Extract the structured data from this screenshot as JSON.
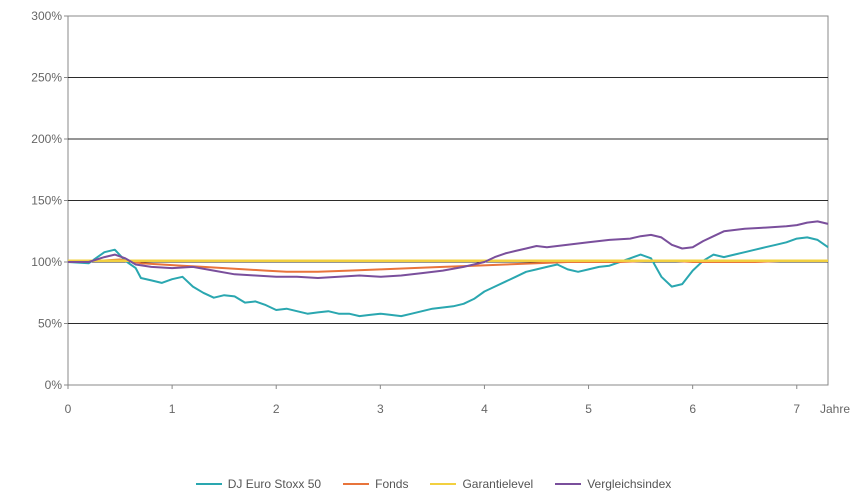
{
  "chart_data": {
    "type": "line",
    "xlabel": "Jahre",
    "ylabel": "",
    "xlim": [
      0,
      7.3
    ],
    "ylim": [
      0,
      300
    ],
    "x_ticks": [
      "0",
      "1",
      "2",
      "3",
      "4",
      "5",
      "6",
      "7"
    ],
    "y_ticks": [
      "0%",
      "50%",
      "100%",
      "150%",
      "200%",
      "250%",
      "300%"
    ],
    "y_tick_values": [
      0,
      50,
      100,
      150,
      200,
      250,
      300
    ],
    "grid": true,
    "legend": "bottom",
    "series": [
      {
        "name": "DJ Euro Stoxx 50",
        "color": "#2aa7b0",
        "x": [
          0,
          0.2,
          0.35,
          0.45,
          0.55,
          0.65,
          0.7,
          0.8,
          0.9,
          1.0,
          1.1,
          1.2,
          1.3,
          1.4,
          1.5,
          1.6,
          1.7,
          1.8,
          1.9,
          2.0,
          2.1,
          2.2,
          2.3,
          2.4,
          2.5,
          2.6,
          2.7,
          2.8,
          2.9,
          3.0,
          3.1,
          3.2,
          3.3,
          3.4,
          3.5,
          3.6,
          3.7,
          3.8,
          3.9,
          4.0,
          4.1,
          4.2,
          4.3,
          4.4,
          4.5,
          4.6,
          4.7,
          4.8,
          4.9,
          5.0,
          5.1,
          5.2,
          5.3,
          5.4,
          5.5,
          5.6,
          5.7,
          5.8,
          5.9,
          6.0,
          6.1,
          6.2,
          6.3,
          6.4,
          6.5,
          6.6,
          6.7,
          6.8,
          6.9,
          7.0,
          7.1,
          7.2,
          7.3
        ],
        "values": [
          100,
          99,
          108,
          110,
          101,
          95,
          87,
          85,
          83,
          86,
          88,
          80,
          75,
          71,
          73,
          72,
          67,
          68,
          65,
          61,
          62,
          60,
          58,
          59,
          60,
          58,
          58,
          56,
          57,
          58,
          57,
          56,
          58,
          60,
          62,
          63,
          64,
          66,
          70,
          76,
          80,
          84,
          88,
          92,
          94,
          96,
          98,
          94,
          92,
          94,
          96,
          97,
          100,
          103,
          106,
          103,
          88,
          80,
          82,
          93,
          101,
          106,
          104,
          106,
          108,
          110,
          112,
          114,
          116,
          119,
          120,
          118,
          112
        ]
      },
      {
        "name": "Fonds",
        "color": "#e8743b",
        "x": [
          0,
          0.3,
          0.5,
          0.7,
          0.9,
          1.1,
          1.3,
          1.5,
          1.7,
          1.9,
          2.1,
          2.4,
          2.7,
          3.0,
          3.3,
          3.6,
          3.9,
          4.2,
          4.5,
          4.8,
          5.0,
          5.3,
          5.6,
          5.8,
          6.0,
          6.3,
          6.6,
          6.9,
          7.1,
          7.3
        ],
        "values": [
          100,
          101,
          102,
          99,
          98,
          97,
          96,
          95,
          94,
          93,
          92,
          92,
          93,
          94,
          95,
          96,
          97,
          98,
          99,
          100,
          100,
          100,
          101,
          101,
          100,
          100,
          100,
          101,
          101,
          101
        ]
      },
      {
        "name": "Garantielevel",
        "color": "#f2d040",
        "x": [
          0,
          7.3
        ],
        "values": [
          101,
          101
        ]
      },
      {
        "name": "Vergleichsindex",
        "color": "#7a4f9c",
        "x": [
          0,
          0.2,
          0.35,
          0.45,
          0.55,
          0.65,
          0.8,
          1.0,
          1.2,
          1.4,
          1.6,
          1.8,
          2.0,
          2.2,
          2.4,
          2.6,
          2.8,
          3.0,
          3.2,
          3.4,
          3.6,
          3.8,
          4.0,
          4.1,
          4.2,
          4.3,
          4.4,
          4.5,
          4.6,
          4.8,
          5.0,
          5.2,
          5.4,
          5.5,
          5.6,
          5.7,
          5.8,
          5.9,
          6.0,
          6.1,
          6.2,
          6.3,
          6.5,
          6.7,
          6.9,
          7.0,
          7.1,
          7.2,
          7.3
        ],
        "values": [
          100,
          100,
          104,
          106,
          103,
          98,
          96,
          95,
          96,
          93,
          90,
          89,
          88,
          88,
          87,
          88,
          89,
          88,
          89,
          91,
          93,
          96,
          100,
          104,
          107,
          109,
          111,
          113,
          112,
          114,
          116,
          118,
          119,
          121,
          122,
          120,
          114,
          111,
          112,
          117,
          121,
          125,
          127,
          128,
          129,
          130,
          132,
          133,
          131
        ]
      }
    ]
  }
}
